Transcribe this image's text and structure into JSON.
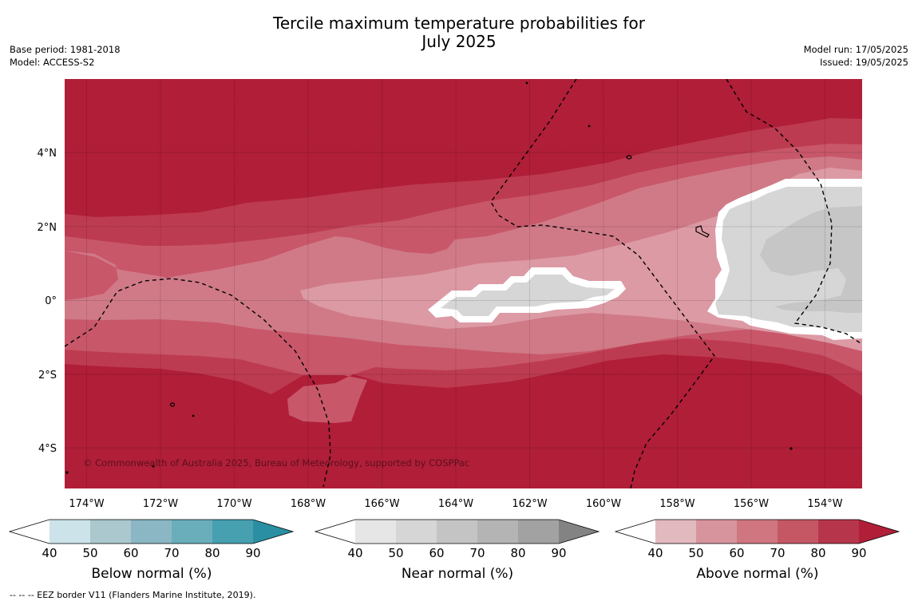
{
  "title": {
    "line1": "Tercile maximum temperature probabilities for",
    "line2": "July 2025"
  },
  "meta_left": {
    "base_period": "Base period: 1981-2018",
    "model": "Model: ACCESS-S2"
  },
  "meta_right": {
    "model_run": "Model run: 17/05/2025",
    "issued": "Issued: 19/05/2025"
  },
  "map": {
    "copyright": "© Commonwealth of Australia 2025, Bureau of Meteorology, supported by COSPPac",
    "lon_ticks": [
      "174°W",
      "172°W",
      "170°W",
      "168°W",
      "166°W",
      "164°W",
      "162°W",
      "160°W",
      "158°W",
      "156°W",
      "154°W"
    ],
    "lat_ticks": [
      "4°N",
      "2°N",
      "0°",
      "2°S",
      "4°S"
    ],
    "colors": {
      "above_90": "#b01e38",
      "above_80": "#bd3b50",
      "above_70": "#c8576a",
      "above_60": "#d07a87",
      "above_50": "#dc9aa4",
      "near_60": "#d6d6d6",
      "near_70": "#c6c6c6",
      "white": "#ffffff"
    }
  },
  "colorbars": [
    {
      "label": "Below normal (%)",
      "ticks": [
        "40",
        "50",
        "60",
        "70",
        "80",
        "90"
      ],
      "colors": [
        "#ffffff",
        "#cbe3e9",
        "#aac8ce",
        "#8bb7c4",
        "#6aaebb",
        "#46a0b0",
        "#2a8fa2"
      ]
    },
    {
      "label": "Near normal (%)",
      "ticks": [
        "40",
        "50",
        "60",
        "70",
        "80",
        "90"
      ],
      "colors": [
        "#ffffff",
        "#e6e6e6",
        "#d6d6d6",
        "#c4c4c4",
        "#b4b4b4",
        "#a2a2a2",
        "#838383"
      ]
    },
    {
      "label": "Above normal (%)",
      "ticks": [
        "40",
        "50",
        "60",
        "70",
        "80",
        "90"
      ],
      "colors": [
        "#ffffff",
        "#e2b9bf",
        "#d8949d",
        "#cf7680",
        "#c55765",
        "#b7354a",
        "#b01e38"
      ]
    }
  ],
  "footer": "--  --  -- EEZ border V11 (Flanders Marine Institute, 2019)."
}
